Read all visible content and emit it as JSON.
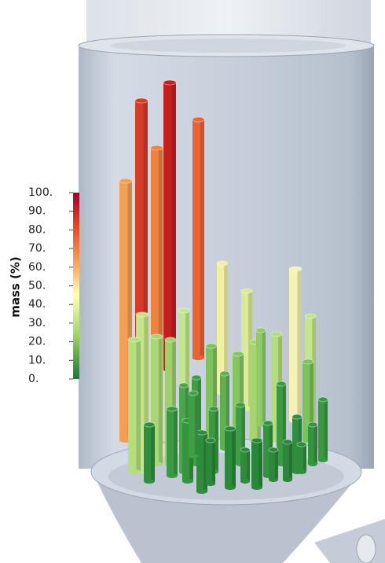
{
  "colorbar": {
    "title": "mass (%)",
    "ticks": [
      "100.",
      "90.",
      "80.",
      "70.",
      "60.",
      "50.",
      "40.",
      "30.",
      "20.",
      "10.",
      "0."
    ]
  }
}
